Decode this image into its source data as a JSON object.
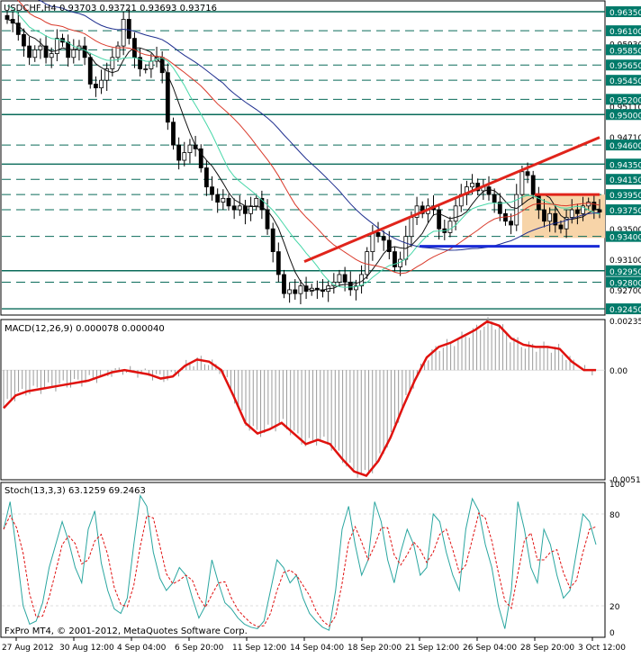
{
  "header": {
    "symbol": "USDCHF,H4",
    "ohlc": "0.93703 0.93721 0.93693 0.93716"
  },
  "footer": {
    "copyright": "FxPro MT4, © 2001-2012, MetaQuotes Software Corp."
  },
  "colors": {
    "background": "#ffffff",
    "frame": "#000000",
    "level_line": "#0a6b5a",
    "price_label_bg": "#007a6a",
    "price_label_text": "#ffffff",
    "candle": "#000000",
    "ma_red": "#d93a2b",
    "ma_blue": "#1f2f8f",
    "ma_black": "#111111",
    "ma_green": "#46d7a8",
    "trendline_red": "#e0241b",
    "support_blue": "#1a2bd6",
    "range_box": "#f7d4a8",
    "macd_signal": "#e0120e",
    "macd_hist": "#9a9a9a",
    "stoch_main": "#2aa6a0",
    "stoch_signal": "#e01010"
  },
  "chart_data": [
    {
      "type": "candlestick",
      "title": "USDCHF,H4",
      "ylim": [
        0.9238,
        0.9648
      ],
      "x_tick_labels": [
        "27 Aug 2012",
        "30 Aug 12:00",
        "4 Sep 04:00",
        "6 Sep 20:00",
        "11 Sep 12:00",
        "14 Sep 04:00",
        "18 Sep 20:00",
        "21 Sep 12:00",
        "26 Sep 04:00",
        "28 Sep 20:00",
        "3 Oct 12:00"
      ],
      "y_tick_labels": [
        {
          "value": 0.9635,
          "label": "0.96350",
          "highlight": true
        },
        {
          "value": 0.961,
          "label": "0.96100",
          "highlight": true
        },
        {
          "value": 0.9593,
          "label": "0.95930",
          "highlight": false
        },
        {
          "value": 0.9585,
          "label": "0.95850",
          "highlight": true
        },
        {
          "value": 0.9565,
          "label": "0.95650",
          "highlight": true
        },
        {
          "value": 0.9545,
          "label": "0.95450",
          "highlight": true
        },
        {
          "value": 0.952,
          "label": "0.95200",
          "highlight": true
        },
        {
          "value": 0.9511,
          "label": "0.95110",
          "highlight": false
        },
        {
          "value": 0.95,
          "label": "0.95000",
          "highlight": true
        },
        {
          "value": 0.9471,
          "label": "0.94710",
          "highlight": false
        },
        {
          "value": 0.946,
          "label": "0.94600",
          "highlight": true
        },
        {
          "value": 0.9435,
          "label": "0.94350",
          "highlight": true
        },
        {
          "value": 0.9415,
          "label": "0.94150",
          "highlight": true
        },
        {
          "value": 0.9395,
          "label": "0.93950",
          "highlight": true
        },
        {
          "value": 0.9375,
          "label": "0.93750",
          "highlight": true
        },
        {
          "value": 0.935,
          "label": "0.93500",
          "highlight": false
        },
        {
          "value": 0.934,
          "label": "0.93400",
          "highlight": true
        },
        {
          "value": 0.931,
          "label": "0.93100",
          "highlight": false
        },
        {
          "value": 0.9295,
          "label": "0.92950",
          "highlight": true
        },
        {
          "value": 0.928,
          "label": "0.92800",
          "highlight": true
        },
        {
          "value": 0.927,
          "label": "0.92700",
          "highlight": false
        },
        {
          "value": 0.9245,
          "label": "0.92450",
          "highlight": true
        }
      ],
      "horizontal_levels": [
        0.9635,
        0.961,
        0.9585,
        0.9565,
        0.9545,
        0.952,
        0.95,
        0.946,
        0.9435,
        0.9415,
        0.9395,
        0.9375,
        0.934,
        0.9295,
        0.928,
        0.9245
      ],
      "solid_levels": [
        0.9635,
        0.95,
        0.9435,
        0.9295,
        0.9245
      ],
      "dashed_levels": [
        0.961,
        0.9585,
        0.9565,
        0.9545,
        0.952,
        0.946,
        0.9415,
        0.9395,
        0.9375,
        0.934,
        0.928
      ],
      "series_close": [
        0.9625,
        0.962,
        0.9605,
        0.959,
        0.9575,
        0.9585,
        0.959,
        0.9575,
        0.958,
        0.96,
        0.9595,
        0.9575,
        0.9585,
        0.959,
        0.9575,
        0.954,
        0.9535,
        0.9545,
        0.956,
        0.9575,
        0.959,
        0.9625,
        0.96,
        0.9575,
        0.956,
        0.956,
        0.957,
        0.9575,
        0.9555,
        0.949,
        0.946,
        0.944,
        0.945,
        0.946,
        0.9455,
        0.943,
        0.9405,
        0.9395,
        0.9385,
        0.939,
        0.938,
        0.9375,
        0.938,
        0.937,
        0.938,
        0.939,
        0.9375,
        0.935,
        0.932,
        0.929,
        0.9265,
        0.927,
        0.9265,
        0.9275,
        0.9268,
        0.9272,
        0.927,
        0.9268,
        0.9275,
        0.928,
        0.929,
        0.928,
        0.927,
        0.9275,
        0.929,
        0.932,
        0.9345,
        0.934,
        0.9335,
        0.932,
        0.93,
        0.931,
        0.934,
        0.9365,
        0.938,
        0.937,
        0.938,
        0.9375,
        0.935,
        0.9345,
        0.936,
        0.938,
        0.9395,
        0.9405,
        0.941,
        0.94,
        0.9405,
        0.9395,
        0.9385,
        0.937,
        0.936,
        0.9355,
        0.9395,
        0.9425,
        0.942,
        0.9395,
        0.9375,
        0.936,
        0.937,
        0.9355,
        0.935,
        0.9365,
        0.9375,
        0.937,
        0.938,
        0.9385,
        0.9375,
        0.9372
      ],
      "lines": [
        {
          "name": "trendline",
          "from": [
            "14 Sep 04:00",
            0.9307
          ],
          "to": [
            "3 Oct 12:00",
            0.947
          ],
          "color": "#e0241b"
        },
        {
          "name": "support",
          "from": [
            "21 Sep 12:00",
            0.9327
          ],
          "to": [
            "3 Oct 12:00",
            0.9327
          ],
          "color": "#1a2bd6"
        },
        {
          "name": "resistance",
          "from": [
            "28 Sep 20:00",
            0.9395
          ],
          "to": [
            "3 Oct 12:00",
            0.9395
          ],
          "color": "#e0241b"
        }
      ],
      "range_box": {
        "y0": 0.9395,
        "y1": 0.9338
      }
    },
    {
      "type": "line",
      "title": "MACD(12,26,9) 0.000078 0.000040",
      "ylim": [
        -0.00515,
        0.00235
      ],
      "y_tick_labels": [
        "0.00235",
        "0.00",
        "-0.00515"
      ],
      "signal_values": [
        -0.0018,
        -0.0012,
        -0.001,
        -0.0009,
        -0.0008,
        -0.0007,
        -0.0006,
        -0.0005,
        -0.0003,
        -0.0001,
        0.0,
        -0.0001,
        -0.0002,
        -0.0004,
        -0.0003,
        0.0002,
        0.0005,
        0.0004,
        0.0,
        -0.0012,
        -0.0025,
        -0.003,
        -0.0028,
        -0.0025,
        -0.003,
        -0.0035,
        -0.0033,
        -0.0035,
        -0.0042,
        -0.0048,
        -0.005,
        -0.0043,
        -0.0032,
        -0.0018,
        -0.0005,
        0.0006,
        0.0011,
        0.0013,
        0.0016,
        0.0019,
        0.0023,
        0.0021,
        0.0015,
        0.0012,
        0.0011,
        0.0011,
        0.001,
        0.0004,
        0.0,
        0.0
      ]
    },
    {
      "type": "line",
      "title": "Stoch(13,3,3) 63.1259 69.2463",
      "ylim": [
        0,
        100
      ],
      "y_tick_labels": [
        "100",
        "80",
        "20",
        "0"
      ],
      "main_values": [
        70,
        88,
        55,
        20,
        8,
        10,
        22,
        45,
        60,
        75,
        62,
        45,
        35,
        70,
        82,
        48,
        30,
        18,
        15,
        25,
        60,
        92,
        85,
        55,
        38,
        30,
        35,
        45,
        40,
        25,
        12,
        20,
        50,
        35,
        22,
        18,
        12,
        8,
        6,
        5,
        10,
        30,
        50,
        45,
        35,
        40,
        25,
        15,
        10,
        6,
        4,
        30,
        70,
        85,
        60,
        40,
        50,
        88,
        75,
        50,
        35,
        55,
        70,
        60,
        40,
        45,
        80,
        75,
        55,
        40,
        30,
        70,
        90,
        82,
        60,
        45,
        20,
        5,
        30,
        88,
        70,
        45,
        35,
        70,
        60,
        40,
        25,
        30,
        55,
        80,
        75,
        60
      ]
    }
  ]
}
